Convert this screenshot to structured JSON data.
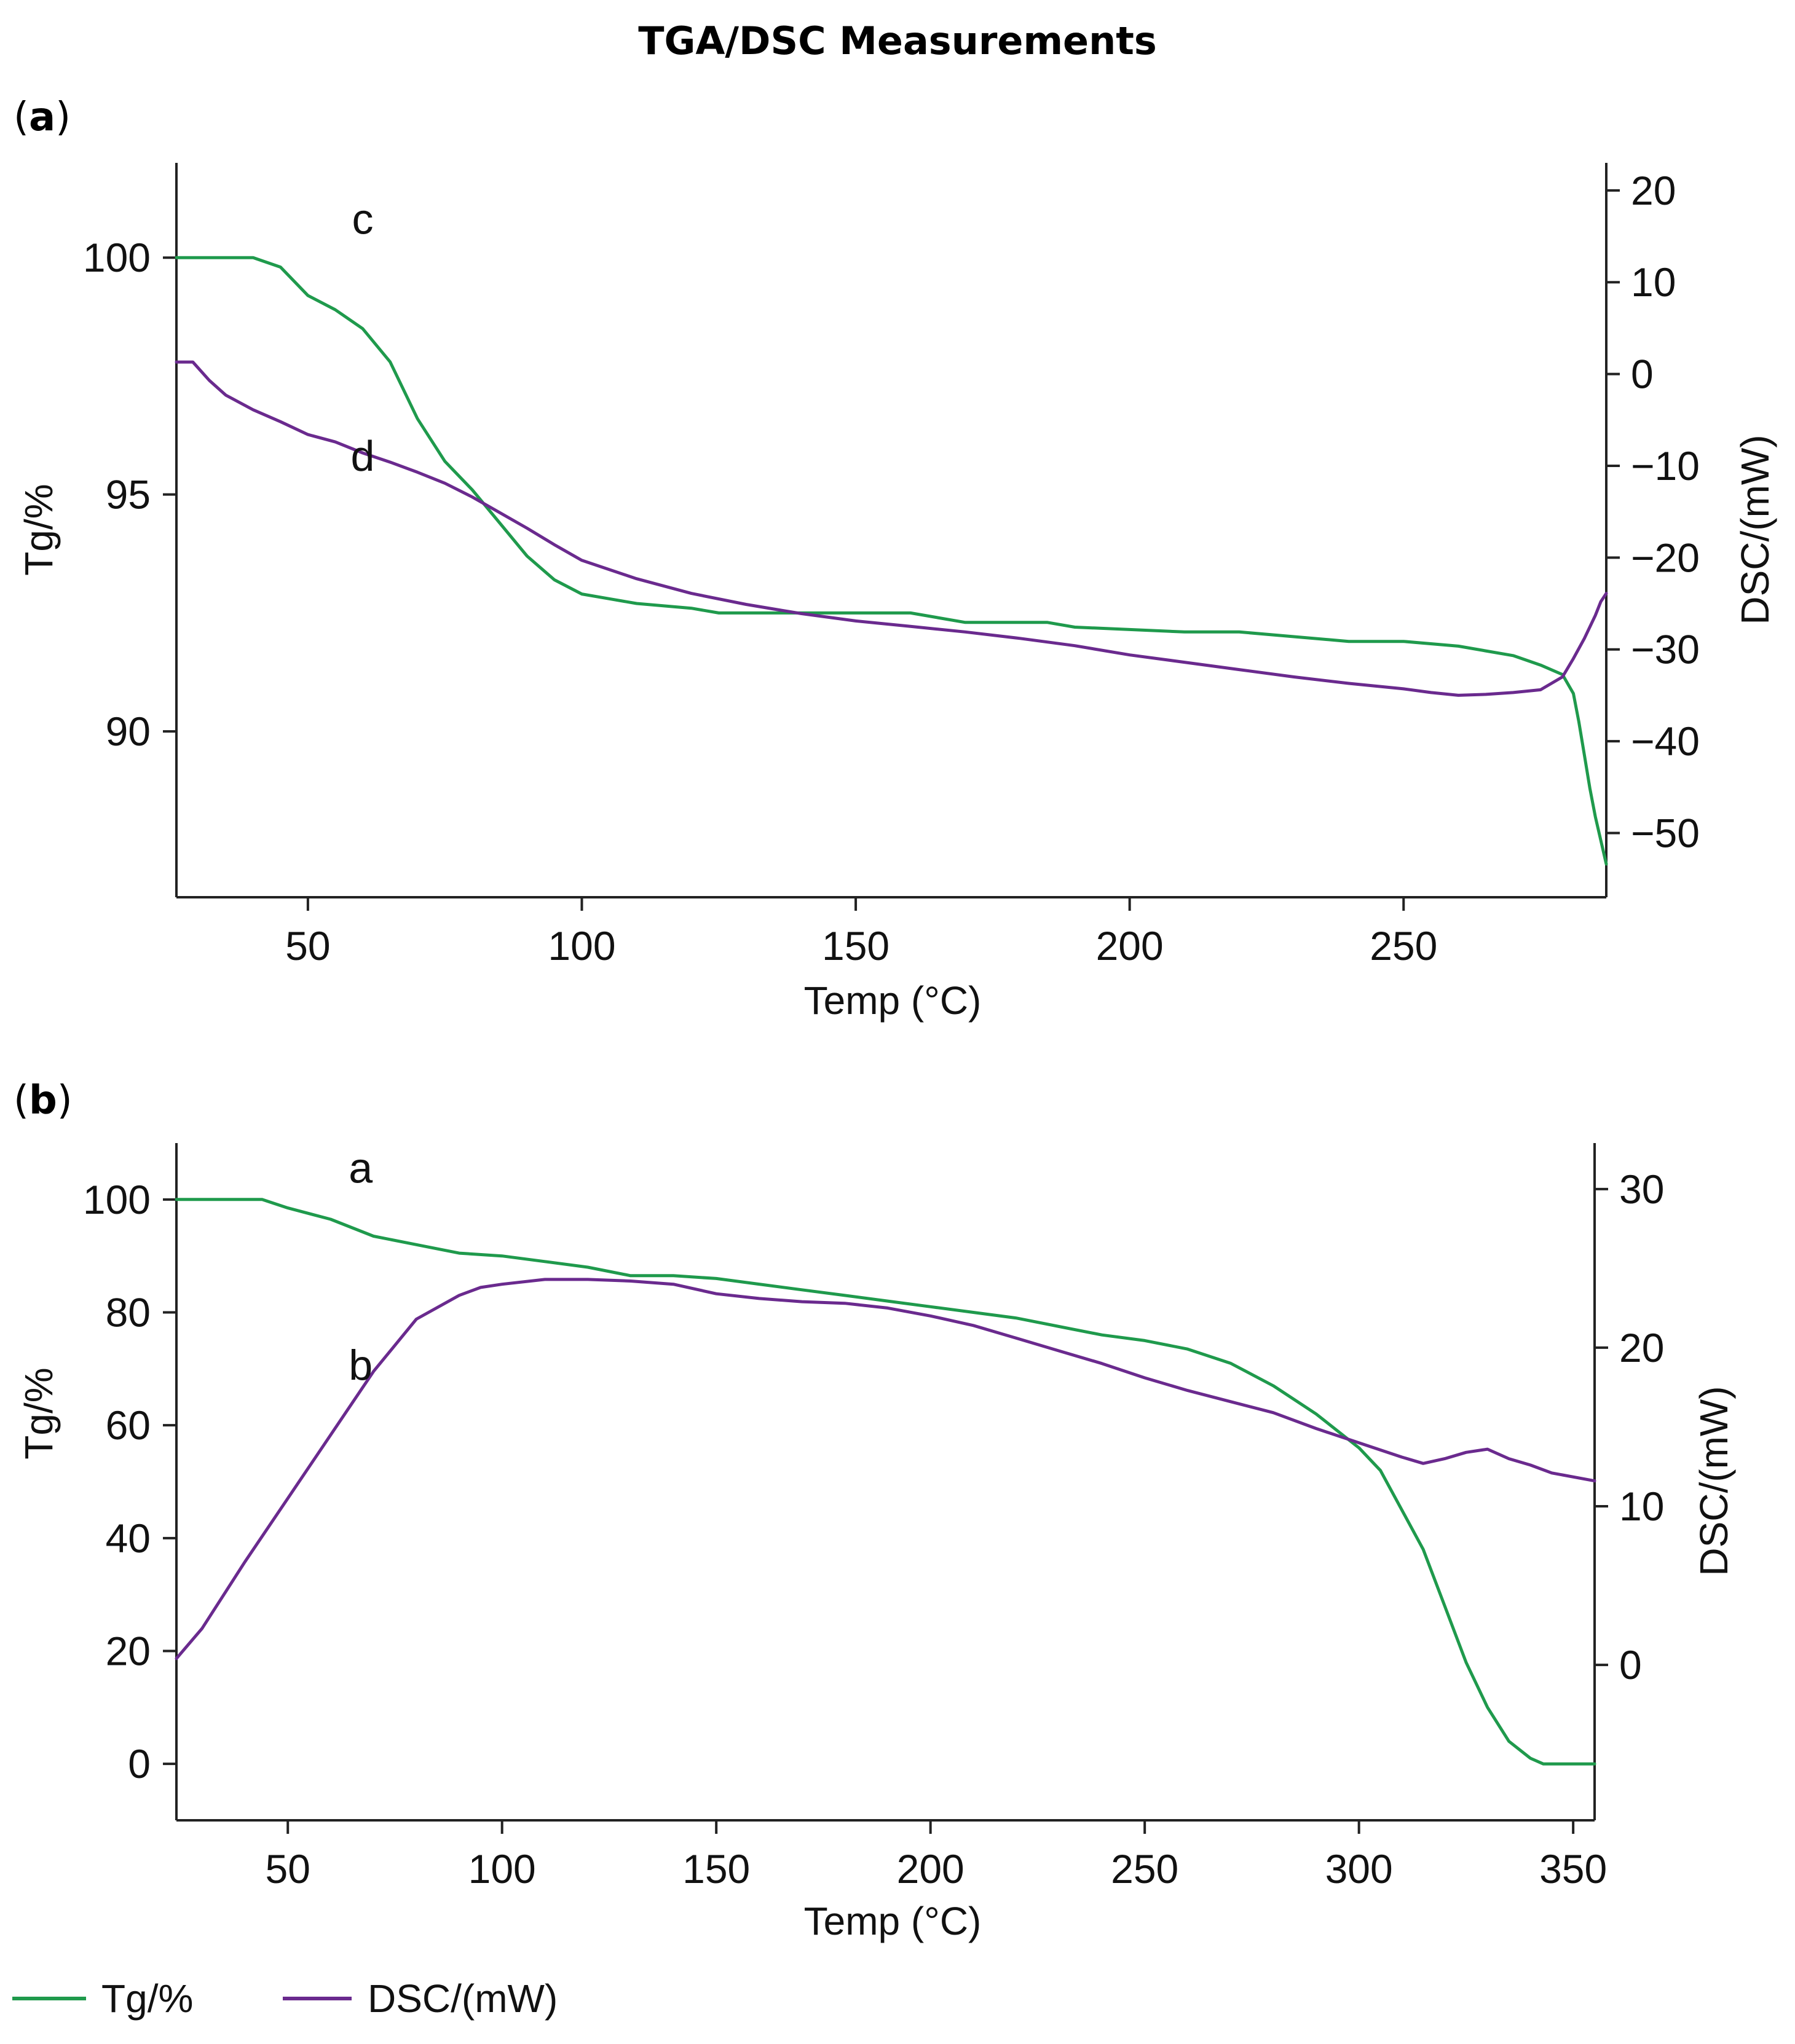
{
  "figure": {
    "title": "TGA/DSC Measurements",
    "legend": [
      {
        "label": "Tg/%",
        "color": "#1f9a4c"
      },
      {
        "label": "DSC/(mW)",
        "color": "#6a2a8e"
      }
    ]
  },
  "chart_data": [
    {
      "type": "line",
      "panel": "a",
      "panel_open": "(",
      "panel_letter": "a",
      "panel_close": ")",
      "xlabel": "Temp (°C)",
      "ylabel": "Tg/%",
      "y2label": "DSC/(mW)",
      "xlim": [
        26,
        287
      ],
      "ylim": [
        86.5,
        102
      ],
      "y2lim": [
        -57,
        23
      ],
      "xticks": [
        50,
        100,
        150,
        200,
        250
      ],
      "yticks": [
        90,
        95,
        100
      ],
      "y2ticks": [
        -50,
        -40,
        -30,
        -20,
        -10,
        0,
        10,
        20
      ],
      "grid": false,
      "annotations": [
        {
          "text": "c",
          "x": 60,
          "y": 100.5,
          "axis": "left"
        },
        {
          "text": "d",
          "x": 60,
          "y": 95.5,
          "axis": "left"
        }
      ],
      "series": [
        {
          "name": "Tg/%",
          "axis": "left",
          "color": "#1f9a4c",
          "x": [
            26,
            40,
            45,
            50,
            55,
            60,
            65,
            70,
            75,
            80,
            85,
            90,
            95,
            100,
            105,
            110,
            120,
            125,
            140,
            160,
            165,
            170,
            185,
            190,
            210,
            220,
            230,
            240,
            250,
            260,
            265,
            270,
            275,
            279,
            281,
            282,
            283,
            284,
            285,
            286,
            287
          ],
          "y": [
            100,
            100,
            99.8,
            99.2,
            98.9,
            98.5,
            97.8,
            96.6,
            95.7,
            95.1,
            94.4,
            93.7,
            93.2,
            92.9,
            92.8,
            92.7,
            92.6,
            92.5,
            92.5,
            92.5,
            92.4,
            92.3,
            92.3,
            92.2,
            92.1,
            92.1,
            92.0,
            91.9,
            91.9,
            91.8,
            91.7,
            91.6,
            91.4,
            91.2,
            90.8,
            90.2,
            89.5,
            88.8,
            88.2,
            87.7,
            87.2
          ]
        },
        {
          "name": "DSC/(mW)",
          "axis": "right",
          "color": "#6a2a8e",
          "x": [
            26,
            29,
            32,
            35,
            40,
            45,
            50,
            55,
            60,
            65,
            70,
            75,
            80,
            85,
            90,
            95,
            100,
            110,
            120,
            130,
            140,
            150,
            160,
            170,
            180,
            190,
            200,
            210,
            220,
            230,
            240,
            250,
            255,
            260,
            265,
            270,
            275,
            279,
            281,
            283,
            285,
            286,
            287
          ],
          "y": [
            1.3,
            1.3,
            -0.7,
            -2.3,
            -3.9,
            -5.2,
            -6.6,
            -7.4,
            -8.6,
            -9.6,
            -10.7,
            -11.9,
            -13.4,
            -15.1,
            -16.8,
            -18.6,
            -20.3,
            -22.3,
            -23.9,
            -25.1,
            -26.1,
            -26.9,
            -27.5,
            -28.1,
            -28.8,
            -29.6,
            -30.6,
            -31.4,
            -32.2,
            -33.0,
            -33.7,
            -34.3,
            -34.7,
            -35.0,
            -34.9,
            -34.7,
            -34.4,
            -33.0,
            -31.0,
            -28.8,
            -26.3,
            -24.8,
            -23.9
          ]
        }
      ]
    },
    {
      "type": "line",
      "panel": "b",
      "panel_open": "(",
      "panel_letter": "b",
      "panel_close": ")",
      "xlabel": "Temp (°C)",
      "ylabel": "Tg/%",
      "y2label": "DSC/(mW)",
      "xlim": [
        24,
        355
      ],
      "ylim": [
        -10,
        110
      ],
      "y2lim": [
        -9.8,
        32.9
      ],
      "xticks": [
        50,
        100,
        150,
        200,
        250,
        300,
        350
      ],
      "yticks": [
        0,
        20,
        40,
        60,
        80,
        100
      ],
      "y2ticks": [
        0,
        10,
        20,
        30
      ],
      "grid": false,
      "annotations": [
        {
          "text": "a",
          "x": 67,
          "y": 103,
          "axis": "left"
        },
        {
          "text": "b",
          "x": 67,
          "y": 68,
          "axis": "left"
        }
      ],
      "series": [
        {
          "name": "Tg/%",
          "axis": "left",
          "color": "#1f9a4c",
          "x": [
            24,
            44,
            50,
            60,
            70,
            80,
            90,
            100,
            110,
            120,
            130,
            140,
            150,
            160,
            170,
            180,
            190,
            200,
            210,
            220,
            230,
            240,
            250,
            260,
            270,
            280,
            290,
            300,
            305,
            310,
            315,
            320,
            325,
            330,
            335,
            340,
            343,
            350,
            355
          ],
          "y": [
            100,
            100,
            98.5,
            96.5,
            93.5,
            92,
            90.5,
            90,
            89,
            88,
            86.5,
            86.5,
            86,
            85,
            84,
            83,
            82,
            81,
            80,
            79,
            77.5,
            76,
            75,
            73.5,
            71,
            67,
            62,
            56,
            52,
            45,
            38,
            28,
            18,
            10,
            4,
            1,
            0,
            0,
            0
          ]
        },
        {
          "name": "DSC/(mW)",
          "axis": "right",
          "color": "#6a2a8e",
          "x": [
            24,
            30,
            40,
            50,
            60,
            70,
            80,
            90,
            95,
            100,
            110,
            120,
            130,
            140,
            150,
            160,
            170,
            180,
            190,
            200,
            210,
            220,
            230,
            240,
            250,
            260,
            270,
            280,
            290,
            300,
            310,
            315,
            320,
            325,
            330,
            335,
            340,
            345,
            355
          ],
          "y": [
            0.4,
            2.3,
            6.5,
            10.5,
            14.5,
            18.5,
            21.8,
            23.3,
            23.8,
            24,
            24.3,
            24.3,
            24.2,
            24,
            23.4,
            23.1,
            22.9,
            22.8,
            22.5,
            22.0,
            21.4,
            20.6,
            19.8,
            19.0,
            18.1,
            17.3,
            16.6,
            15.9,
            14.9,
            14.0,
            13.1,
            12.7,
            13.0,
            13.4,
            13.6,
            13.0,
            12.6,
            12.1,
            11.6
          ]
        }
      ]
    }
  ]
}
